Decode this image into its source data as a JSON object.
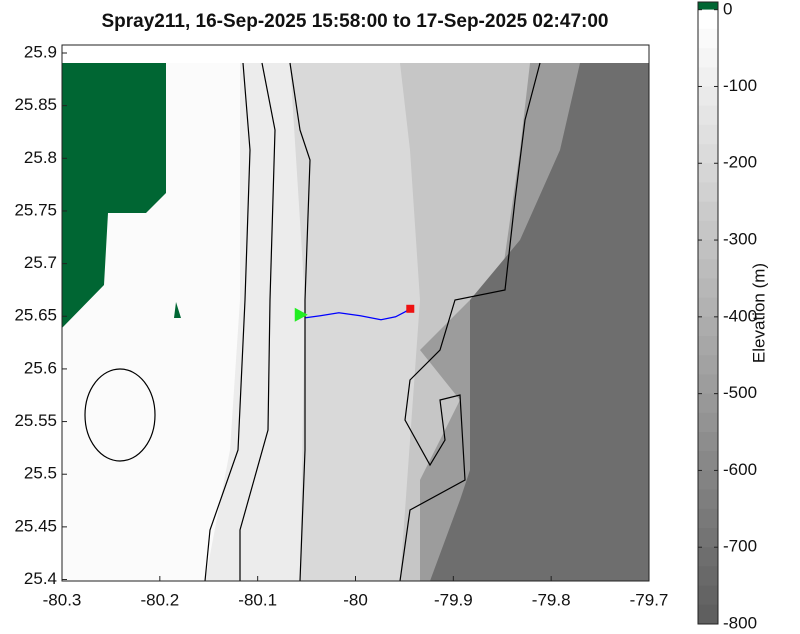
{
  "chart_data": {
    "type": "track",
    "title": "Spray211, 16-Sep-2025 15:58:00 to 17-Sep-2025 02:47:00",
    "xlim": [
      -80.3,
      -79.7
    ],
    "xticks": [
      -80.3,
      -80.2,
      -80.1,
      -80,
      -79.9,
      -79.8,
      -79.7
    ],
    "ylim": [
      25.3986,
      25.9076
    ],
    "yticks": [
      25.4,
      25.45,
      25.5,
      25.55,
      25.6,
      25.65,
      25.7,
      25.75,
      25.8,
      25.85,
      25.9
    ],
    "series": [
      {
        "color": "#0000ff",
        "x": [
          -80.051,
          -80.036,
          -80.017,
          -79.995,
          -79.974,
          -79.959,
          -79.949,
          -79.944
        ],
        "values": [
          25.6486,
          25.6505,
          25.6533,
          25.6505,
          25.6467,
          25.6495,
          25.6543,
          25.6571
        ]
      }
    ],
    "start": {
      "x": -80.057,
      "y": 25.6514,
      "color": "#22ee22"
    },
    "end": {
      "x": -79.944,
      "y": 25.6571,
      "color": "#ee1111"
    },
    "colorbar": {
      "label": "Elevation (m)",
      "lim": [
        -800,
        10
      ],
      "ticks": [
        0,
        -100,
        -200,
        -300,
        -400,
        -500,
        -600,
        -700,
        -800
      ],
      "low_color": "#5f5f5f",
      "high_color": "#ffffff",
      "land_color": "#006633"
    }
  }
}
